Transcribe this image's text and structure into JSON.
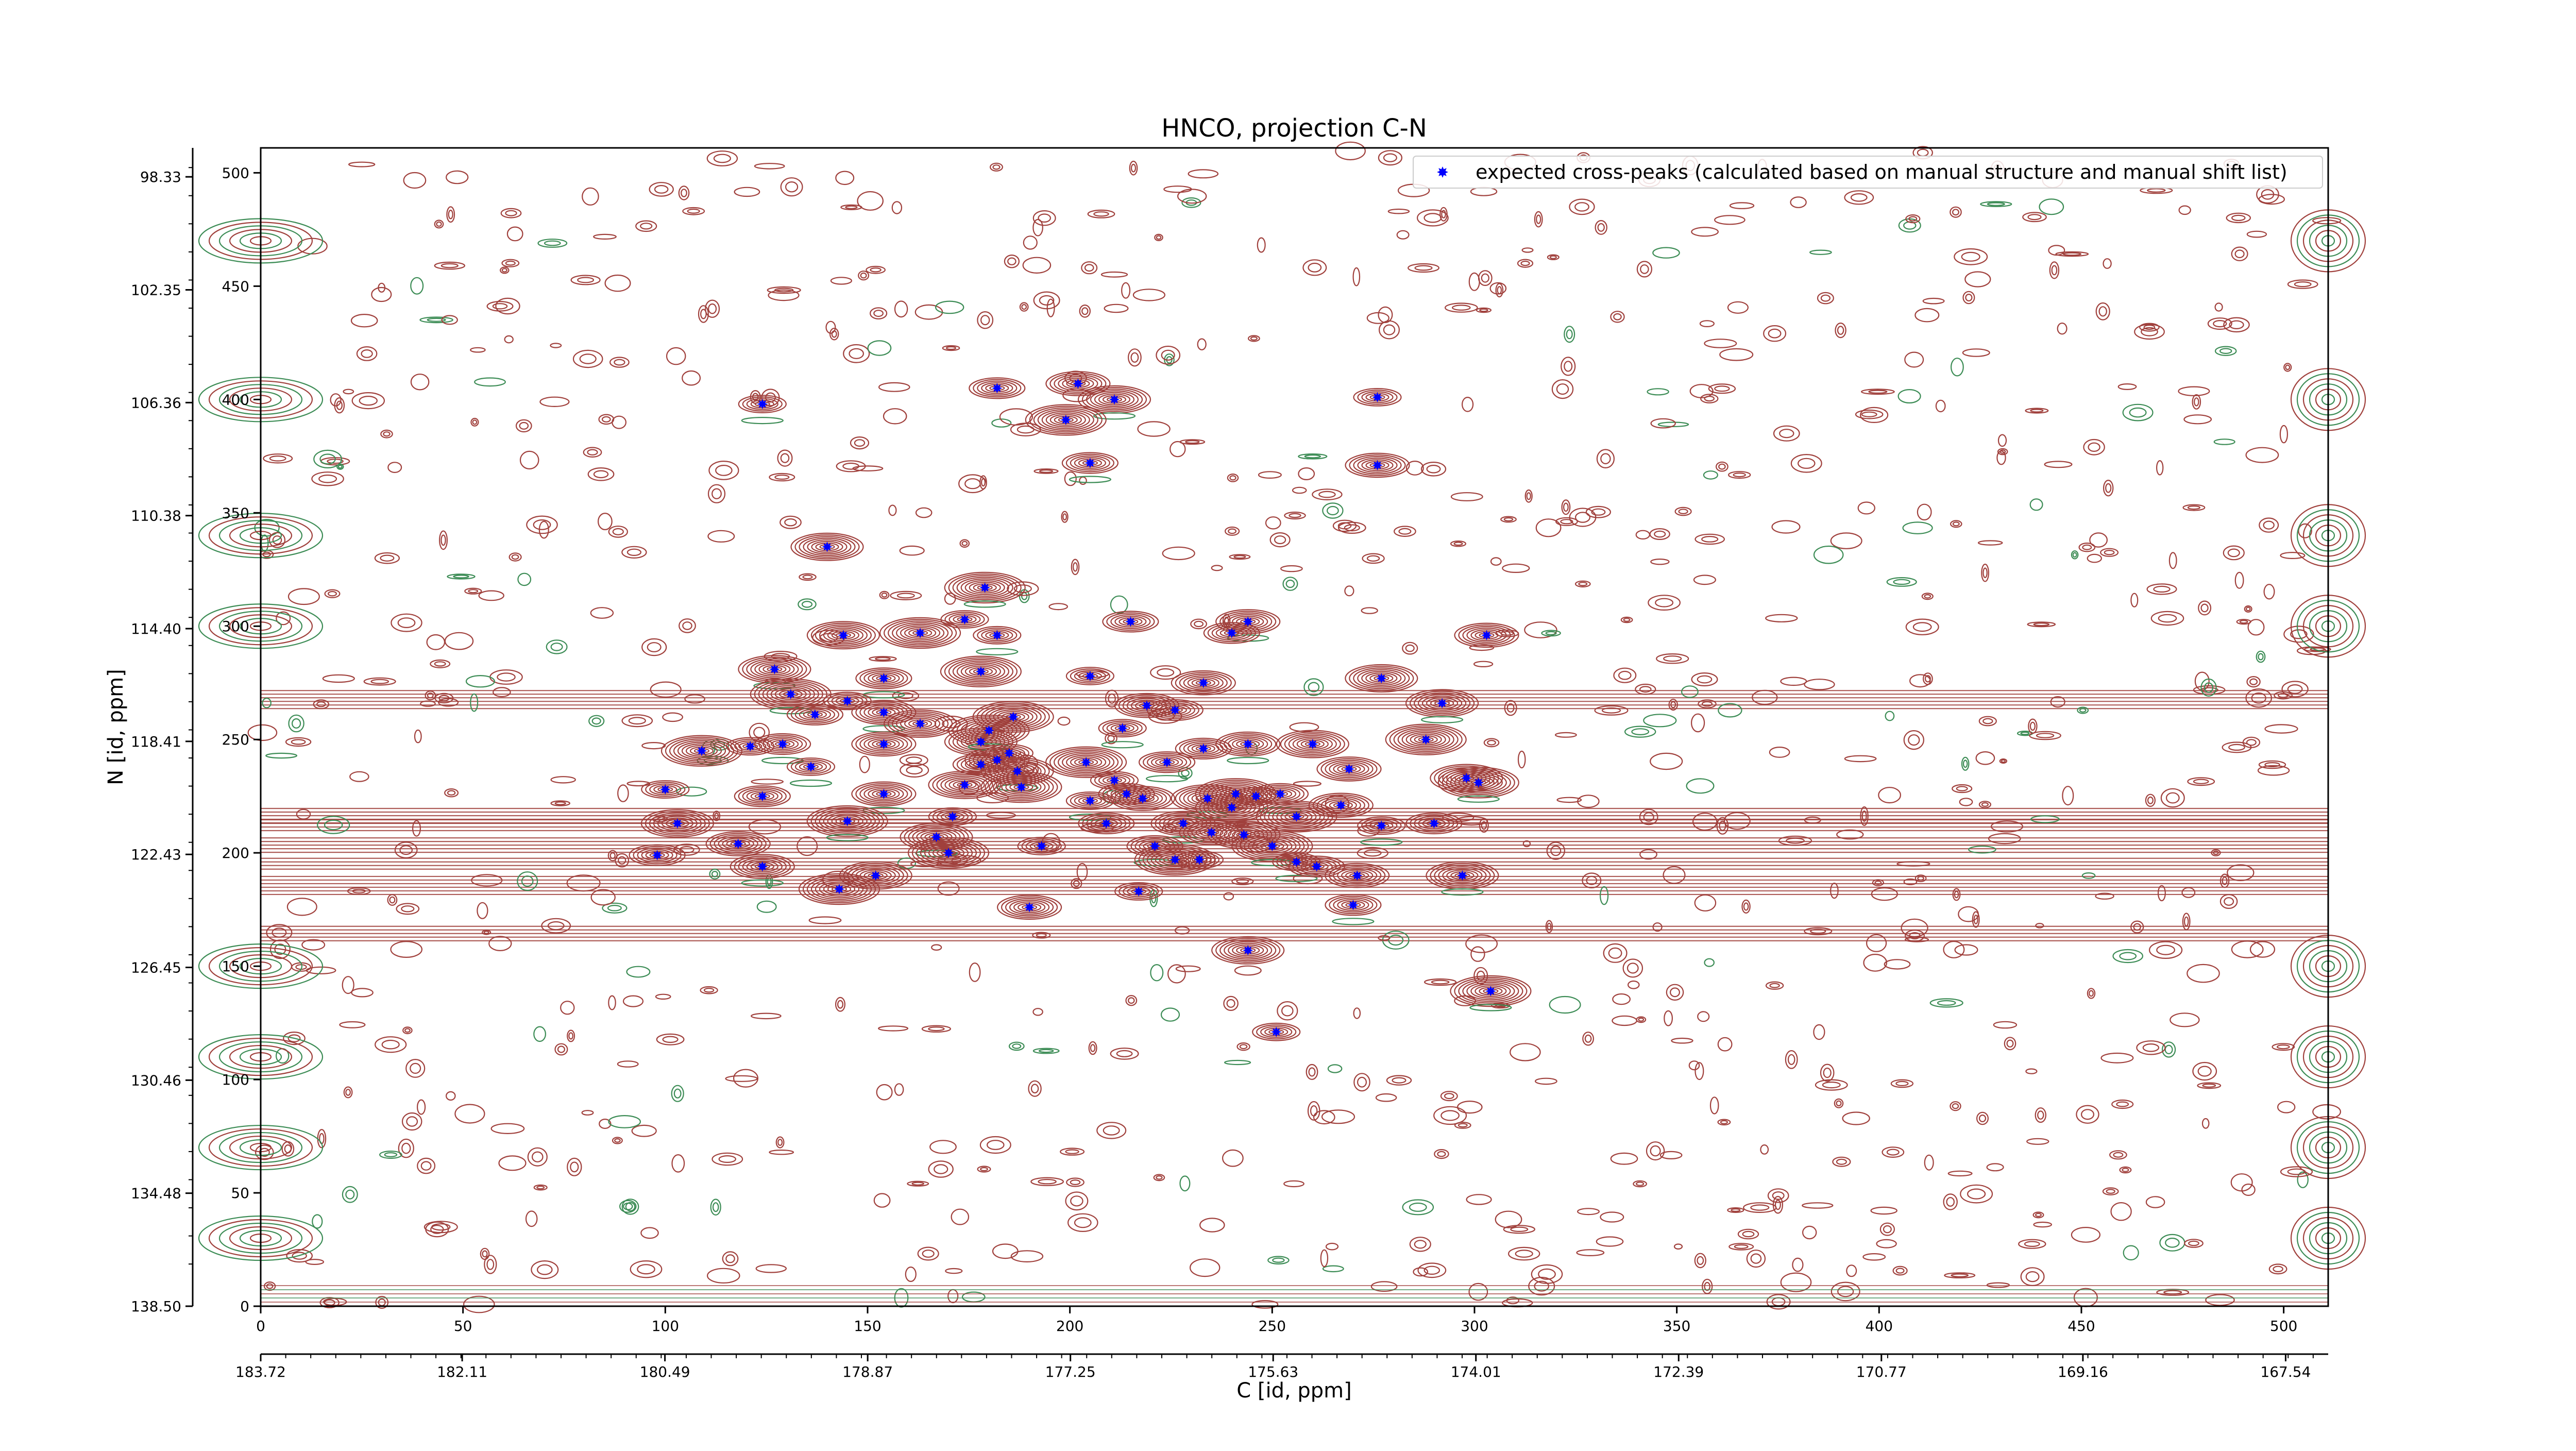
{
  "chart_data": {
    "type": "scatter",
    "title": "HNCO, projection C-N",
    "xlabel": "C [id, ppm]",
    "ylabel": "N [id, ppm]",
    "x_index_range": [
      0,
      511
    ],
    "y_index_range": [
      0,
      511
    ],
    "x_index_ticks": [
      "0",
      "50",
      "100",
      "150",
      "200",
      "250",
      "300",
      "350",
      "400",
      "450",
      "500"
    ],
    "y_index_ticks": [
      "0",
      "50",
      "100",
      "150",
      "200",
      "250",
      "300",
      "350",
      "400",
      "450",
      "500"
    ],
    "x_ppm_ticks": [
      "183.72",
      "182.11",
      "180.49",
      "178.87",
      "177.25",
      "175.63",
      "174.01",
      "172.39",
      "170.77",
      "169.16",
      "167.54"
    ],
    "y_ppm_ticks": [
      "98.33",
      "102.35",
      "106.36",
      "110.38",
      "114.40",
      "118.41",
      "122.43",
      "126.45",
      "130.46",
      "134.48",
      "138.50"
    ],
    "x_ppm_range": [
      183.72,
      167.2
    ],
    "y_ppm_range": [
      138.5,
      97.3
    ],
    "legend": {
      "position": "top-right",
      "label": "expected cross-peaks (calculated based on manual structure and manual shift list)"
    },
    "colors": {
      "marker": "#0000ff",
      "positive_contour": "#a0403c",
      "negative_contour": "#3c8c55"
    },
    "series": [
      {
        "name": "expected cross-peaks (calculated based on manual structure and manual shift list)",
        "points": [
          [
            124,
            398
          ],
          [
            182,
            405
          ],
          [
            202,
            407
          ],
          [
            211,
            400
          ],
          [
            199,
            391
          ],
          [
            276,
            401
          ],
          [
            205,
            372
          ],
          [
            276,
            371
          ],
          [
            140,
            335
          ],
          [
            179,
            317
          ],
          [
            174,
            303
          ],
          [
            215,
            302
          ],
          [
            244,
            302
          ],
          [
            144,
            296
          ],
          [
            163,
            297
          ],
          [
            182,
            296
          ],
          [
            240,
            297
          ],
          [
            303,
            296
          ],
          [
            127,
            281
          ],
          [
            178,
            280
          ],
          [
            205,
            278
          ],
          [
            154,
            277
          ],
          [
            233,
            275
          ],
          [
            277,
            277
          ],
          [
            131,
            270
          ],
          [
            145,
            267
          ],
          [
            137,
            261
          ],
          [
            154,
            262
          ],
          [
            163,
            257
          ],
          [
            186,
            260
          ],
          [
            213,
            255
          ],
          [
            226,
            263
          ],
          [
            219,
            265
          ],
          [
            292,
            266
          ],
          [
            109,
            245
          ],
          [
            121,
            247
          ],
          [
            129,
            248
          ],
          [
            154,
            248
          ],
          [
            178,
            249
          ],
          [
            180,
            254
          ],
          [
            185,
            244
          ],
          [
            233,
            246
          ],
          [
            244,
            248
          ],
          [
            260,
            248
          ],
          [
            288,
            250
          ],
          [
            136,
            238
          ],
          [
            178,
            239
          ],
          [
            182,
            241
          ],
          [
            187,
            236
          ],
          [
            204,
            240
          ],
          [
            211,
            232
          ],
          [
            224,
            240
          ],
          [
            269,
            237
          ],
          [
            298,
            233
          ],
          [
            301,
            231
          ],
          [
            100,
            228
          ],
          [
            124,
            225
          ],
          [
            154,
            226
          ],
          [
            174,
            230
          ],
          [
            188,
            229
          ],
          [
            205,
            223
          ],
          [
            214,
            226
          ],
          [
            218,
            224
          ],
          [
            234,
            224
          ],
          [
            241,
            226
          ],
          [
            246,
            225
          ],
          [
            252,
            226
          ],
          [
            267,
            221
          ],
          [
            103,
            213
          ],
          [
            145,
            214
          ],
          [
            171,
            216
          ],
          [
            209,
            213
          ],
          [
            228,
            213
          ],
          [
            240,
            220
          ],
          [
            256,
            216
          ],
          [
            277,
            212
          ],
          [
            290,
            213
          ],
          [
            118,
            204
          ],
          [
            167,
            207
          ],
          [
            170,
            200
          ],
          [
            193,
            203
          ],
          [
            221,
            203
          ],
          [
            235,
            209
          ],
          [
            243,
            208
          ],
          [
            250,
            203
          ],
          [
            232,
            197
          ],
          [
            98,
            199
          ],
          [
            124,
            194
          ],
          [
            152,
            190
          ],
          [
            226,
            197
          ],
          [
            256,
            196
          ],
          [
            261,
            194
          ],
          [
            271,
            190
          ],
          [
            297,
            190
          ],
          [
            143,
            184
          ],
          [
            217,
            183
          ],
          [
            270,
            177
          ],
          [
            190,
            176
          ],
          [
            244,
            157
          ],
          [
            304,
            139
          ],
          [
            251,
            121
          ]
        ]
      }
    ],
    "grid": false
  }
}
